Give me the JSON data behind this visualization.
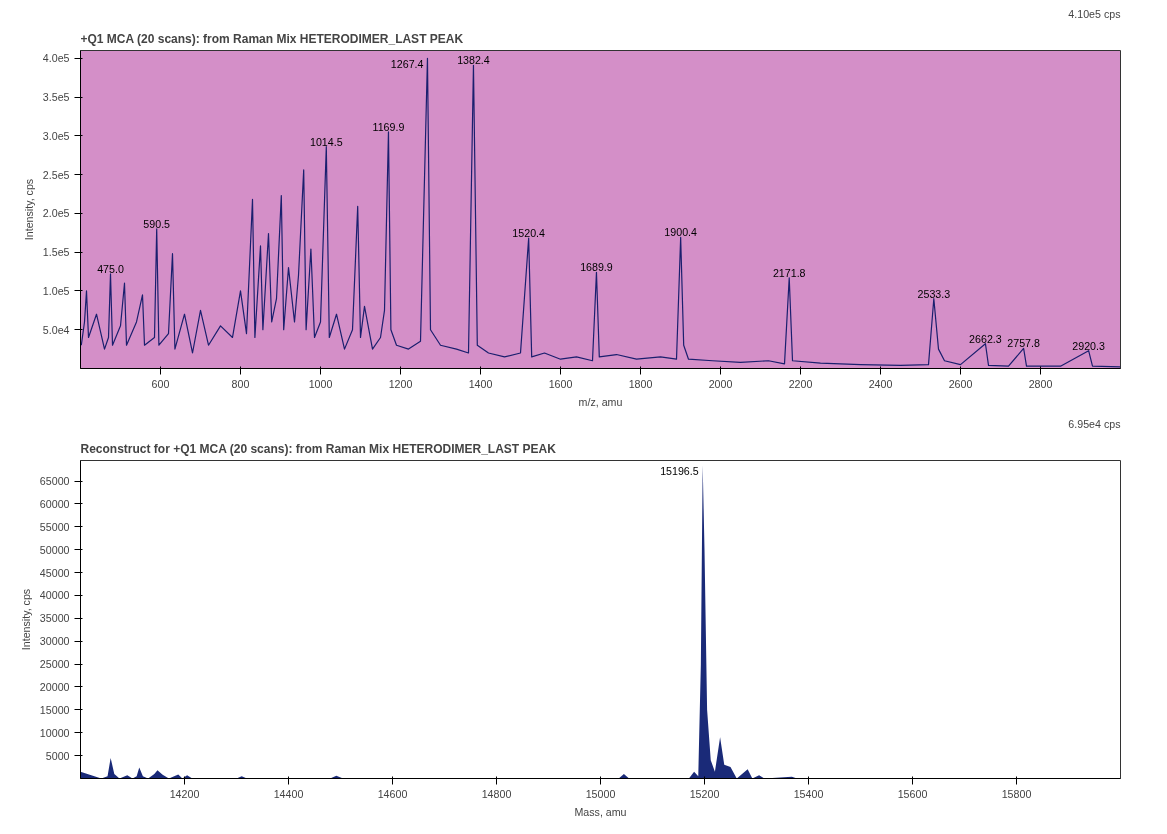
{
  "chart_data": [
    {
      "type": "line",
      "title": "+Q1 MCA (20 scans): from Raman Mix HETERODIMER_LAST PEAK",
      "xlabel": "m/z, amu",
      "ylabel": "Intensity, cps",
      "xlim": [
        400,
        3000
      ],
      "xticks": [
        600,
        800,
        1000,
        1200,
        1400,
        1600,
        1800,
        2000,
        2200,
        2400,
        2600,
        2800
      ],
      "ylim": [
        0,
        410000
      ],
      "yticks": [
        {
          "value": 50000,
          "label": "5.0e4"
        },
        {
          "value": 100000,
          "label": "1.0e5"
        },
        {
          "value": 150000,
          "label": "1.5e5"
        },
        {
          "value": 200000,
          "label": "2.0e5"
        },
        {
          "value": 250000,
          "label": "2.5e5"
        },
        {
          "value": 300000,
          "label": "3.0e5"
        },
        {
          "value": 350000,
          "label": "3.5e5"
        },
        {
          "value": 400000,
          "label": "4.0e5"
        }
      ],
      "grid": false,
      "series": [
        {
          "color": "#1a1f6e",
          "x": [
            402,
            410,
            415,
            420,
            440,
            460,
            470,
            475,
            480,
            500,
            510,
            515,
            540,
            555,
            560,
            585,
            590.5,
            596,
            620,
            630,
            636,
            660,
            680,
            700,
            720,
            750,
            780,
            800,
            815,
            830,
            836,
            850,
            856,
            870,
            878,
            890,
            902,
            908,
            920,
            935,
            945,
            958,
            964,
            976,
            985,
            1000,
            1014.5,
            1022,
            1040,
            1060,
            1080,
            1093,
            1100,
            1110,
            1130,
            1150,
            1160,
            1169.9,
            1176,
            1190,
            1220,
            1250,
            1267.4,
            1275,
            1300,
            1340,
            1370,
            1382.4,
            1392,
            1420,
            1460,
            1500,
            1520.4,
            1528,
            1560,
            1600,
            1640,
            1680,
            1689.9,
            1697,
            1740,
            1790,
            1850,
            1890,
            1900.4,
            1908,
            1920,
            1980,
            2050,
            2120,
            2160,
            2171.8,
            2180,
            2250,
            2350,
            2450,
            2520,
            2533.3,
            2545,
            2560,
            2600,
            2662.3,
            2670,
            2720,
            2757.8,
            2765,
            2850,
            2920.3,
            2930,
            3000
          ],
          "values": [
            30000,
            60000,
            100000,
            40000,
            70000,
            25000,
            40000,
            122000,
            30000,
            55000,
            110000,
            30000,
            60000,
            95000,
            30000,
            40000,
            180000,
            30000,
            45000,
            148000,
            25000,
            70000,
            20000,
            75000,
            30000,
            55000,
            40000,
            100000,
            45000,
            218000,
            40000,
            158000,
            50000,
            174000,
            60000,
            90000,
            223000,
            50000,
            130000,
            60000,
            120000,
            256000,
            50000,
            154000,
            40000,
            60000,
            286000,
            40000,
            70000,
            25000,
            50000,
            209000,
            40000,
            80000,
            25000,
            40000,
            75000,
            305000,
            50000,
            30000,
            25000,
            35000,
            400000,
            50000,
            30000,
            25000,
            20000,
            391000,
            30000,
            20000,
            15000,
            20000,
            168000,
            15000,
            20000,
            12000,
            15000,
            10000,
            124000,
            15000,
            18000,
            12000,
            15000,
            12000,
            169000,
            30000,
            12000,
            10000,
            8000,
            10000,
            6000,
            117000,
            10000,
            7000,
            5000,
            4000,
            5000,
            90000,
            25000,
            10000,
            5000,
            32000,
            4000,
            3000,
            26000,
            3000,
            3000,
            23000,
            3000,
            2000
          ]
        }
      ],
      "annotations": [
        "4.10e5 cps",
        {
          "text": "475.0",
          "x": 475,
          "y": 122000
        },
        {
          "text": "590.5",
          "x": 590.5,
          "y": 180000
        },
        {
          "text": "1014.5",
          "x": 1014.5,
          "y": 286000
        },
        {
          "text": "1169.9",
          "x": 1169.9,
          "y": 305000
        },
        {
          "text": "1267.4",
          "x": 1267.4,
          "y": 400000
        },
        {
          "text": "1382.4",
          "x": 1382.4,
          "y": 391000
        },
        {
          "text": "1520.4",
          "x": 1520.4,
          "y": 168000
        },
        {
          "text": "1689.9",
          "x": 1689.9,
          "y": 124000
        },
        {
          "text": "1900.4",
          "x": 1900.4,
          "y": 169000
        },
        {
          "text": "2171.8",
          "x": 2171.8,
          "y": 117000
        },
        {
          "text": "2533.3",
          "x": 2533.3,
          "y": 90000
        },
        {
          "text": "2662.3",
          "x": 2662.3,
          "y": 32000
        },
        {
          "text": "2757.8",
          "x": 2757.8,
          "y": 26000
        },
        {
          "text": "2920.3",
          "x": 2920.3,
          "y": 23000
        }
      ]
    },
    {
      "type": "area",
      "title": "Reconstruct for +Q1 MCA (20 scans): from Raman Mix HETERODIMER_LAST PEAK",
      "xlabel": "Mass, amu",
      "ylabel": "Intensity, cps",
      "xlim": [
        14000,
        16000
      ],
      "xticks": [
        14200,
        14400,
        14600,
        14800,
        15000,
        15200,
        15400,
        15600,
        15800
      ],
      "ylim": [
        0,
        69500
      ],
      "yticks": [
        5000,
        10000,
        15000,
        20000,
        25000,
        30000,
        35000,
        40000,
        45000,
        50000,
        55000,
        60000,
        65000
      ],
      "grid": false,
      "series": [
        {
          "color": "#1a2a78",
          "x": [
            14000,
            14040,
            14052,
            14058,
            14065,
            14075,
            14090,
            14100,
            14108,
            14113,
            14120,
            14130,
            14142,
            14148,
            14158,
            14170,
            14188,
            14196,
            14205,
            14215,
            14300,
            14310,
            14320,
            14480,
            14492,
            14505,
            15035,
            15045,
            15055,
            15170,
            15180,
            15188,
            15193,
            15196.5,
            15200,
            15205,
            15212,
            15220,
            15230,
            15238,
            15250,
            15262,
            15283,
            15292,
            15305,
            15315,
            15368,
            15378,
            16000
          ],
          "values": [
            1500,
            0,
            500,
            4500,
            1000,
            0,
            700,
            0,
            500,
            2400,
            500,
            0,
            1000,
            1800,
            800,
            0,
            900,
            0,
            700,
            0,
            0,
            500,
            0,
            0,
            600,
            0,
            0,
            1000,
            0,
            0,
            1500,
            500,
            25000,
            68500,
            50000,
            15000,
            4000,
            1500,
            9000,
            3000,
            2500,
            0,
            2000,
            0,
            700,
            0,
            400,
            0,
            0
          ]
        }
      ],
      "annotations": [
        "6.95e4 cps",
        {
          "text": "15196.5",
          "x": 15196.5,
          "y": 68500
        }
      ]
    }
  ]
}
